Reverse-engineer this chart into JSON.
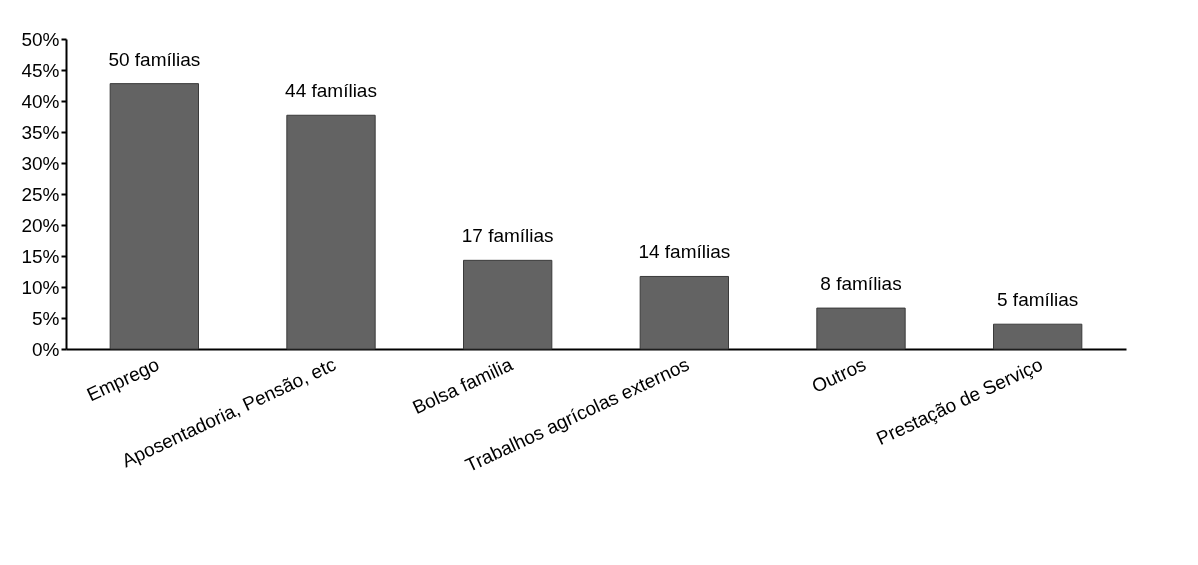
{
  "chart_data": {
    "type": "bar",
    "categories": [
      "Emprego",
      "Aposentadoria, Pensão, etc",
      "Bolsa familia",
      "Trabalhos agrícolas externos",
      "Outros",
      "Prestação de Serviço"
    ],
    "values": [
      42.8,
      37.7,
      14.3,
      11.7,
      6.6,
      4.0
    ],
    "annotations": [
      {
        "text": "50 famílias",
        "x": "Emprego",
        "y": 42.8
      },
      {
        "text": "44 famílias",
        "x": "Aposentadoria, Pensão, etc",
        "y": 37.7
      },
      {
        "text": "17 famílias",
        "x": "Bolsa familia",
        "y": 14.3
      },
      {
        "text": "14 famílias",
        "x": "Trabalhos agrícolas externos",
        "y": 11.7
      },
      {
        "text": "8 famílias",
        "x": "Outros",
        "y": 6.6
      },
      {
        "text": "5 famílias",
        "x": "Prestação de Serviço",
        "y": 4.0
      }
    ],
    "color": "#636363",
    "ylim": [
      0,
      50
    ],
    "yticks": [
      {
        "value": 0,
        "label": "0%"
      },
      {
        "value": 5,
        "label": "5%"
      },
      {
        "value": 10,
        "label": "10%"
      },
      {
        "value": 15,
        "label": "15%"
      },
      {
        "value": 20,
        "label": "20%"
      },
      {
        "value": 25,
        "label": "25%"
      },
      {
        "value": 30,
        "label": "30%"
      },
      {
        "value": 35,
        "label": "35%"
      },
      {
        "value": 40,
        "label": "40%"
      },
      {
        "value": 45,
        "label": "45%"
      },
      {
        "value": 50,
        "label": "50%"
      }
    ],
    "grid": false
  }
}
